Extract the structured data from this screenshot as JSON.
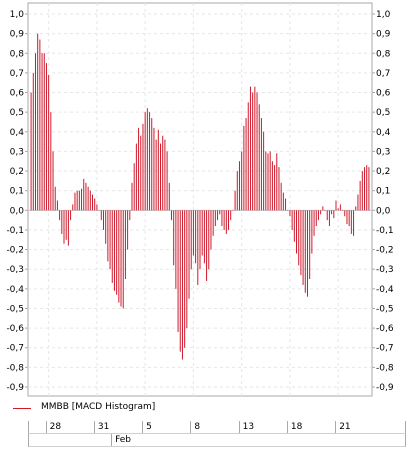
{
  "chart_data": {
    "type": "bar",
    "series": [
      {
        "name": "MMBB [MACD Histogram]",
        "values": [
          0.6,
          0.7,
          0.8,
          0.9,
          0.87,
          0.8,
          0.8,
          0.75,
          0.69,
          0.5,
          0.3,
          0.12,
          0.05,
          -0.05,
          -0.12,
          -0.17,
          -0.15,
          -0.18,
          -0.05,
          0.03,
          0.09,
          0.1,
          0.1,
          0.11,
          0.16,
          0.14,
          0.12,
          0.1,
          0.08,
          0.06,
          0.03,
          0.0,
          -0.05,
          -0.1,
          -0.17,
          -0.26,
          -0.3,
          -0.37,
          -0.41,
          -0.43,
          -0.47,
          -0.49,
          -0.5,
          -0.35,
          -0.2,
          -0.05,
          0.14,
          0.24,
          0.34,
          0.42,
          0.38,
          0.44,
          0.5,
          0.52,
          0.5,
          0.47,
          0.42,
          0.36,
          0.41,
          0.34,
          0.38,
          0.36,
          0.3,
          0.14,
          -0.05,
          -0.28,
          -0.4,
          -0.62,
          -0.72,
          -0.76,
          -0.7,
          -0.6,
          -0.45,
          -0.3,
          -0.23,
          -0.27,
          -0.38,
          -0.3,
          -0.23,
          -0.27,
          -0.36,
          -0.3,
          -0.2,
          -0.13,
          -0.08,
          -0.05,
          -0.02,
          -0.08,
          -0.1,
          -0.12,
          -0.1,
          -0.05,
          0.0,
          0.1,
          0.2,
          0.25,
          0.3,
          0.43,
          0.47,
          0.55,
          0.63,
          0.6,
          0.63,
          0.6,
          0.54,
          0.47,
          0.4,
          0.3,
          0.29,
          0.3,
          0.25,
          0.23,
          0.29,
          0.22,
          0.14,
          0.09,
          0.06,
          0.0,
          -0.03,
          -0.1,
          -0.16,
          -0.22,
          -0.28,
          -0.33,
          -0.38,
          -0.42,
          -0.44,
          -0.35,
          -0.22,
          -0.13,
          -0.08,
          -0.05,
          -0.02,
          0.02,
          0.0,
          -0.05,
          -0.08,
          -0.02,
          -0.04,
          0.05,
          0.01,
          0.03,
          0.0,
          -0.03,
          -0.07,
          -0.08,
          -0.12,
          -0.13,
          0.02,
          0.08,
          0.15,
          0.2,
          0.22,
          0.23,
          0.22
        ]
      }
    ],
    "ylim": [
      -0.9,
      1.0
    ],
    "yticks": [
      "1,0",
      "0,9",
      "0,8",
      "0,7",
      "0,6",
      "0,5",
      "0,4",
      "0,3",
      "0,2",
      "0,1",
      "0,0",
      "-0,1",
      "-0,2",
      "-0,3",
      "-0,4",
      "-0,5",
      "-0,6",
      "-0,7",
      "-0,8",
      "-0,9"
    ],
    "ytick_values": [
      1.0,
      0.9,
      0.8,
      0.7,
      0.6,
      0.5,
      0.4,
      0.3,
      0.2,
      0.1,
      0.0,
      -0.1,
      -0.2,
      -0.3,
      -0.4,
      -0.5,
      -0.6,
      -0.7,
      -0.8,
      -0.9
    ],
    "xticks": [
      "28",
      "31",
      "5",
      "8",
      "13",
      "18",
      "21"
    ],
    "xtick_bar_index": [
      8,
      30,
      52,
      74,
      96,
      118,
      140
    ],
    "month_label": "Feb",
    "month_start_index": 36,
    "grid": true,
    "legend_position": "bottom-left",
    "bar_color": "#d0192b"
  },
  "legend": {
    "label": "MMBB [MACD Histogram]"
  }
}
